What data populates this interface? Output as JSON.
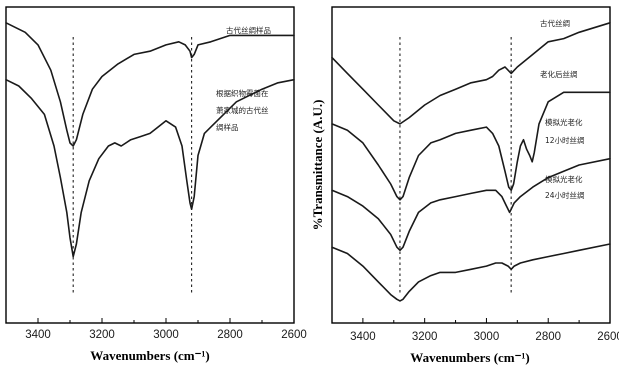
{
  "chart_data": [
    {
      "type": "line",
      "xlabel": "Wavenumbers (cm⁻¹)",
      "ylabel": "",
      "xlim": [
        3500,
        2600
      ],
      "x_ticks": [
        "3400",
        "3200",
        "3000",
        "2800",
        "2600"
      ],
      "y_axis": "offset transmittance, no scale",
      "grid": false,
      "reference_lines_x": [
        3290,
        2920
      ],
      "series": [
        {
          "annotation": "古代丝绸样品",
          "points": [
            [
              3500,
              0.95
            ],
            [
              3440,
              0.92
            ],
            [
              3400,
              0.88
            ],
            [
              3360,
              0.8
            ],
            [
              3330,
              0.7
            ],
            [
              3310,
              0.61
            ],
            [
              3300,
              0.57
            ],
            [
              3290,
              0.56
            ],
            [
              3280,
              0.58
            ],
            [
              3260,
              0.66
            ],
            [
              3230,
              0.74
            ],
            [
              3200,
              0.78
            ],
            [
              3150,
              0.82
            ],
            [
              3100,
              0.85
            ],
            [
              3050,
              0.86
            ],
            [
              3000,
              0.88
            ],
            [
              2960,
              0.89
            ],
            [
              2940,
              0.88
            ],
            [
              2925,
              0.86
            ],
            [
              2920,
              0.84
            ],
            [
              2912,
              0.85
            ],
            [
              2900,
              0.88
            ],
            [
              2860,
              0.89
            ],
            [
              2800,
              0.91
            ],
            [
              2700,
              0.91
            ],
            [
              2600,
              0.91
            ]
          ]
        },
        {
          "annotation": "根据织物霉菌在萧家城的古代丝绸样品",
          "points": [
            [
              3500,
              0.77
            ],
            [
              3460,
              0.75
            ],
            [
              3420,
              0.71
            ],
            [
              3380,
              0.66
            ],
            [
              3350,
              0.56
            ],
            [
              3330,
              0.46
            ],
            [
              3310,
              0.35
            ],
            [
              3300,
              0.27
            ],
            [
              3290,
              0.21
            ],
            [
              3280,
              0.25
            ],
            [
              3265,
              0.35
            ],
            [
              3240,
              0.45
            ],
            [
              3210,
              0.52
            ],
            [
              3180,
              0.56
            ],
            [
              3160,
              0.57
            ],
            [
              3140,
              0.56
            ],
            [
              3110,
              0.58
            ],
            [
              3080,
              0.59
            ],
            [
              3050,
              0.6
            ],
            [
              3000,
              0.64
            ],
            [
              2970,
              0.62
            ],
            [
              2950,
              0.56
            ],
            [
              2935,
              0.45
            ],
            [
              2925,
              0.38
            ],
            [
              2920,
              0.36
            ],
            [
              2912,
              0.4
            ],
            [
              2900,
              0.53
            ],
            [
              2880,
              0.6
            ],
            [
              2860,
              0.62
            ],
            [
              2820,
              0.66
            ],
            [
              2780,
              0.7
            ],
            [
              2700,
              0.74
            ],
            [
              2650,
              0.76
            ],
            [
              2600,
              0.77
            ]
          ]
        }
      ]
    },
    {
      "type": "line",
      "xlabel": "Wavenumbers (cm⁻¹)",
      "ylabel": "%Transmittance (A.U.)",
      "xlim": [
        3500,
        2600
      ],
      "x_ticks": [
        "3400",
        "3200",
        "3000",
        "2800",
        "2600"
      ],
      "y_axis": "offset transmittance, no scale",
      "grid": false,
      "reference_lines_x": [
        3280,
        2920
      ],
      "series": [
        {
          "annotation": "古代丝绸",
          "points": [
            [
              3500,
              0.84
            ],
            [
              3450,
              0.79
            ],
            [
              3400,
              0.74
            ],
            [
              3350,
              0.69
            ],
            [
              3300,
              0.64
            ],
            [
              3280,
              0.63
            ],
            [
              3250,
              0.65
            ],
            [
              3200,
              0.69
            ],
            [
              3150,
              0.72
            ],
            [
              3100,
              0.74
            ],
            [
              3050,
              0.76
            ],
            [
              3000,
              0.77
            ],
            [
              2980,
              0.78
            ],
            [
              2960,
              0.8
            ],
            [
              2940,
              0.81
            ],
            [
              2920,
              0.79
            ],
            [
              2900,
              0.81
            ],
            [
              2850,
              0.85
            ],
            [
              2800,
              0.89
            ],
            [
              2750,
              0.9
            ],
            [
              2700,
              0.92
            ],
            [
              2600,
              0.95
            ]
          ]
        },
        {
          "annotation": "老化后丝绸",
          "points": [
            [
              3500,
              0.63
            ],
            [
              3450,
              0.61
            ],
            [
              3400,
              0.57
            ],
            [
              3350,
              0.5
            ],
            [
              3310,
              0.44
            ],
            [
              3290,
              0.4
            ],
            [
              3280,
              0.39
            ],
            [
              3270,
              0.4
            ],
            [
              3250,
              0.46
            ],
            [
              3220,
              0.53
            ],
            [
              3180,
              0.57
            ],
            [
              3150,
              0.58
            ],
            [
              3100,
              0.6
            ],
            [
              3050,
              0.61
            ],
            [
              3000,
              0.62
            ],
            [
              2980,
              0.6
            ],
            [
              2960,
              0.56
            ],
            [
              2940,
              0.48
            ],
            [
              2928,
              0.43
            ],
            [
              2920,
              0.42
            ],
            [
              2912,
              0.44
            ],
            [
              2900,
              0.51
            ],
            [
              2890,
              0.56
            ],
            [
              2880,
              0.58
            ],
            [
              2870,
              0.55
            ],
            [
              2860,
              0.53
            ],
            [
              2852,
              0.51
            ],
            [
              2845,
              0.54
            ],
            [
              2830,
              0.63
            ],
            [
              2800,
              0.7
            ],
            [
              2750,
              0.73
            ],
            [
              2700,
              0.73
            ],
            [
              2650,
              0.73
            ],
            [
              2600,
              0.73
            ]
          ]
        },
        {
          "annotation": "模拟光老化12小时丝绸",
          "points": [
            [
              3500,
              0.42
            ],
            [
              3450,
              0.4
            ],
            [
              3400,
              0.37
            ],
            [
              3350,
              0.33
            ],
            [
              3310,
              0.28
            ],
            [
              3290,
              0.24
            ],
            [
              3280,
              0.23
            ],
            [
              3270,
              0.24
            ],
            [
              3250,
              0.29
            ],
            [
              3220,
              0.35
            ],
            [
              3180,
              0.38
            ],
            [
              3150,
              0.39
            ],
            [
              3100,
              0.4
            ],
            [
              3050,
              0.41
            ],
            [
              3000,
              0.42
            ],
            [
              2970,
              0.42
            ],
            [
              2950,
              0.4
            ],
            [
              2935,
              0.37
            ],
            [
              2925,
              0.35
            ],
            [
              2920,
              0.36
            ],
            [
              2910,
              0.38
            ],
            [
              2890,
              0.4
            ],
            [
              2850,
              0.43
            ],
            [
              2800,
              0.46
            ],
            [
              2750,
              0.48
            ],
            [
              2700,
              0.5
            ],
            [
              2600,
              0.52
            ]
          ]
        },
        {
          "annotation": "模拟光老化24小时丝绸",
          "points": [
            [
              3500,
              0.24
            ],
            [
              3450,
              0.22
            ],
            [
              3400,
              0.18
            ],
            [
              3350,
              0.13
            ],
            [
              3310,
              0.09
            ],
            [
              3290,
              0.075
            ],
            [
              3280,
              0.07
            ],
            [
              3270,
              0.075
            ],
            [
              3250,
              0.1
            ],
            [
              3220,
              0.13
            ],
            [
              3180,
              0.15
            ],
            [
              3150,
              0.16
            ],
            [
              3100,
              0.16
            ],
            [
              3050,
              0.17
            ],
            [
              3000,
              0.18
            ],
            [
              2970,
              0.19
            ],
            [
              2950,
              0.19
            ],
            [
              2930,
              0.18
            ],
            [
              2920,
              0.17
            ],
            [
              2910,
              0.18
            ],
            [
              2890,
              0.19
            ],
            [
              2850,
              0.2
            ],
            [
              2800,
              0.21
            ],
            [
              2750,
              0.22
            ],
            [
              2700,
              0.23
            ],
            [
              2600,
              0.25
            ]
          ]
        }
      ]
    }
  ],
  "panels": {
    "left": {
      "annotations": [
        "古代丝绸样品",
        "根据织物霉菌在",
        "萧家城的古代丝",
        "绸样品"
      ]
    },
    "right": {
      "annotations": [
        "古代丝绸",
        "老化后丝绸",
        "模拟光老化",
        "12小时丝绸",
        "模拟光老化",
        "24小时丝绸"
      ]
    }
  }
}
